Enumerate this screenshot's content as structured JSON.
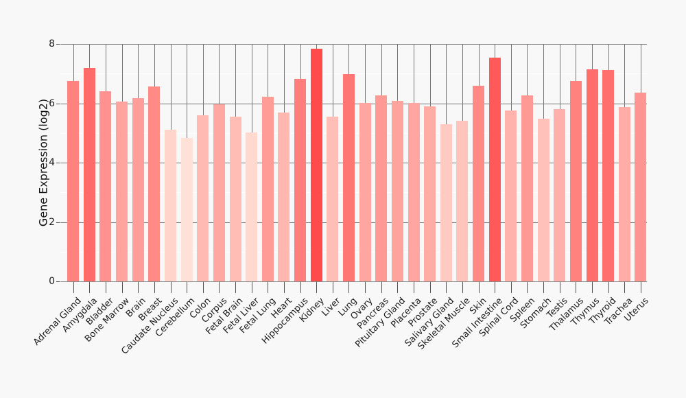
{
  "chart_data": {
    "type": "bar",
    "title": "",
    "xlabel": "",
    "ylabel": "Gene Expression (log2)",
    "ylim": [
      0,
      8
    ],
    "yticks": [
      0,
      2,
      4,
      6,
      8
    ],
    "minor_yticks": [
      1,
      3,
      5,
      7
    ],
    "legend_position": "none",
    "grid": {
      "major_color": "#757575",
      "minor_color": "#ffffff",
      "axis_color": "#8a8a8a",
      "tick_color": "#4f4f4f"
    },
    "background_color": "#f8f8f8",
    "text_color": "#1a1a1a",
    "color_scale": {
      "min_color": "#ffe1d7",
      "max_color": "#ff4b4b"
    },
    "categories": [
      "Adrenal Gland",
      "Amygdala",
      "Bladder",
      "Bone Marrow",
      "Brain",
      "Breast",
      "Caudate Nucleus",
      "Cerebellum",
      "Colon",
      "Corpus",
      "Fetal Brain",
      "Fetal Liver",
      "Fetal Lung",
      "Heart",
      "Hippocampus",
      "Kidney",
      "Liver",
      "Lung",
      "Ovary",
      "Pancreas",
      "Pituitary Gland",
      "Placenta",
      "Prostate",
      "Salivary Gland",
      "Skeletal Muscle",
      "Skin",
      "Small Intestine",
      "Spinal Cord",
      "Spleen",
      "Stomach",
      "Testis",
      "Thalamus",
      "Thymus",
      "Thyroid",
      "Trachea",
      "Uterus"
    ],
    "values": [
      6.74,
      7.19,
      6.41,
      6.05,
      6.17,
      6.57,
      5.1,
      4.84,
      5.6,
      5.97,
      5.56,
      5.01,
      6.22,
      5.68,
      6.81,
      7.83,
      5.54,
      6.98,
      6.02,
      6.27,
      6.08,
      6.02,
      5.9,
      5.29,
      5.4,
      6.6,
      7.53,
      5.75,
      6.27,
      5.47,
      5.81,
      6.74,
      7.14,
      7.11,
      5.88,
      6.35
    ],
    "bar_colors": [
      "#ff827e",
      "#ff6b69",
      "#ff928e",
      "#ffa49e",
      "#ff9e99",
      "#ff8a86",
      "#ffd4cb",
      "#ffe1d7",
      "#ffbbb3",
      "#ffa8a2",
      "#ffbdb5",
      "#ffd8cf",
      "#ff9c96",
      "#ffb7b0",
      "#ff7e7b",
      "#ff4b4b",
      "#ffbeb6",
      "#ff7673",
      "#ffa6a0",
      "#ff9994",
      "#ffa39d",
      "#ffa6a0",
      "#ffaca5",
      "#ffcac2",
      "#ffc5bd",
      "#ff8985",
      "#ff5a59",
      "#ffb3ac",
      "#ff9994",
      "#ffc1b9",
      "#ffb0aa",
      "#ff827e",
      "#ff6e6b",
      "#ff6f6d",
      "#ffada6",
      "#ff9590"
    ]
  }
}
